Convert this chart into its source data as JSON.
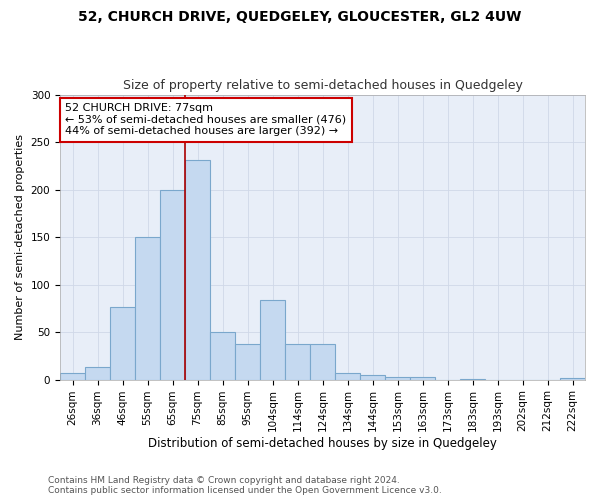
{
  "title": "52, CHURCH DRIVE, QUEDGELEY, GLOUCESTER, GL2 4UW",
  "subtitle": "Size of property relative to semi-detached houses in Quedgeley",
  "xlabel": "Distribution of semi-detached houses by size in Quedgeley",
  "ylabel": "Number of semi-detached properties",
  "categories": [
    "26sqm",
    "36sqm",
    "46sqm",
    "55sqm",
    "65sqm",
    "75sqm",
    "85sqm",
    "95sqm",
    "104sqm",
    "114sqm",
    "124sqm",
    "134sqm",
    "144sqm",
    "153sqm",
    "163sqm",
    "173sqm",
    "183sqm",
    "193sqm",
    "202sqm",
    "212sqm",
    "222sqm"
  ],
  "values": [
    7,
    13,
    76,
    150,
    200,
    231,
    50,
    37,
    84,
    37,
    37,
    7,
    5,
    3,
    3,
    0,
    1,
    0,
    0,
    0,
    2
  ],
  "bar_color": "#c5d9f0",
  "bar_edge_color": "#7aa7cc",
  "vline_color": "#aa0000",
  "vline_x": 4.5,
  "annotation_text": "52 CHURCH DRIVE: 77sqm\n← 53% of semi-detached houses are smaller (476)\n44% of semi-detached houses are larger (392) →",
  "annotation_box_color": "white",
  "annotation_box_edge_color": "#cc0000",
  "grid_color": "#d0d8e8",
  "background_color": "#e8eef8",
  "ylim": [
    0,
    300
  ],
  "yticks": [
    0,
    50,
    100,
    150,
    200,
    250,
    300
  ],
  "footer": "Contains HM Land Registry data © Crown copyright and database right 2024.\nContains public sector information licensed under the Open Government Licence v3.0.",
  "title_fontsize": 10,
  "subtitle_fontsize": 9,
  "xlabel_fontsize": 8.5,
  "ylabel_fontsize": 8,
  "tick_fontsize": 7.5,
  "annotation_fontsize": 8,
  "footer_fontsize": 6.5
}
